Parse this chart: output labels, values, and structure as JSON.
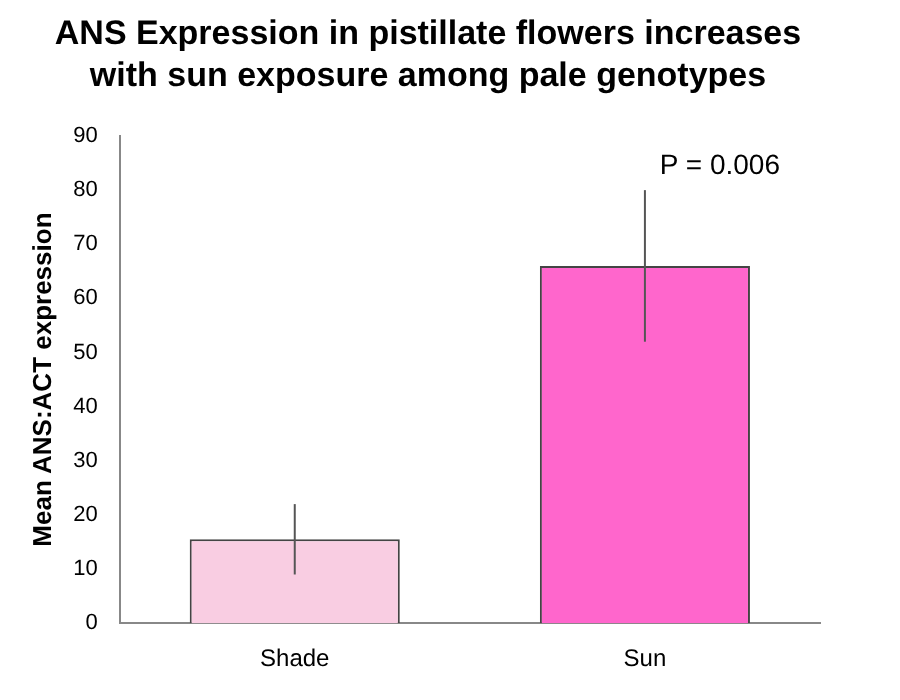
{
  "chart_data": {
    "type": "bar",
    "title": "ANS Expression in pistillate flowers increases with sun exposure among pale genotypes",
    "ylabel": "Mean ANS:ACT expression",
    "categories": [
      "Shade",
      "Sun"
    ],
    "values": [
      15.5,
      66
    ],
    "colors": [
      "#f9cde2",
      "#ff66cc"
    ],
    "errors": [
      [
        9,
        22
      ],
      [
        52,
        80
      ]
    ],
    "ylim": [
      0,
      90
    ],
    "yticks": [
      0,
      10,
      20,
      30,
      40,
      50,
      60,
      70,
      80,
      90
    ],
    "grid": false,
    "legend": false,
    "annotations": [
      "P = 0.006"
    ]
  }
}
